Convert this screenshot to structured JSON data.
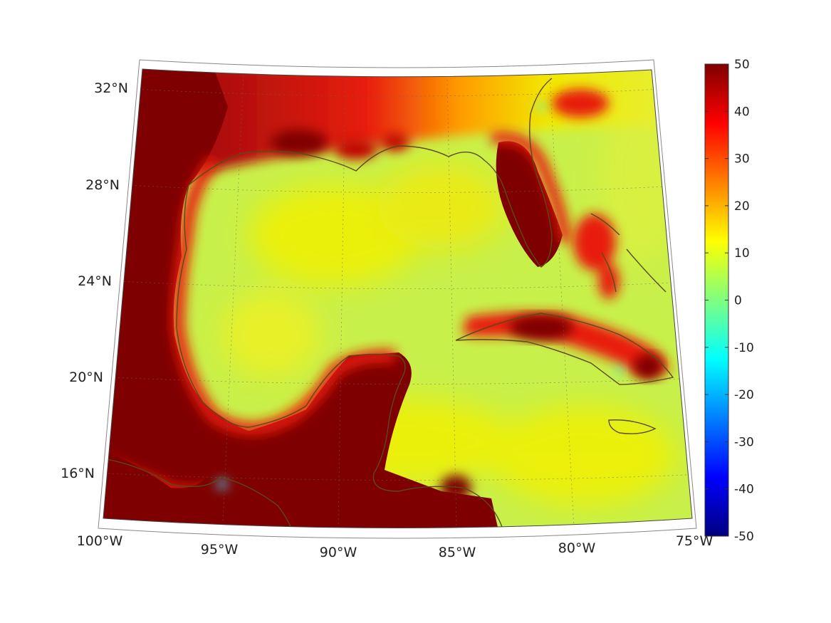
{
  "map": {
    "projection": "conic",
    "field_colormap": "jet",
    "lat_labels": [
      "32°N",
      "28°N",
      "24°N",
      "20°N",
      "16°N"
    ],
    "lon_labels": [
      "100°W",
      "95°W",
      "90°W",
      "85°W",
      "80°W",
      "75°W"
    ],
    "lat_range": [
      14,
      33
    ],
    "lon_range": [
      -100,
      -75
    ],
    "coastline_color": "#5a4a1a",
    "gridlines": true
  },
  "colorbar": {
    "orientation": "vertical",
    "colormap": "jet",
    "range": [
      -50,
      50
    ],
    "ticks": [
      "50",
      "40",
      "30",
      "20",
      "10",
      "0",
      "-10",
      "-20",
      "-30",
      "-40",
      "-50"
    ]
  },
  "colors": {
    "land_high": "#7f0000",
    "ocean_mid": "#c8f04a",
    "ocean_yellow": "#f2f000",
    "red": "#e81e10",
    "orange": "#ff9a00"
  }
}
